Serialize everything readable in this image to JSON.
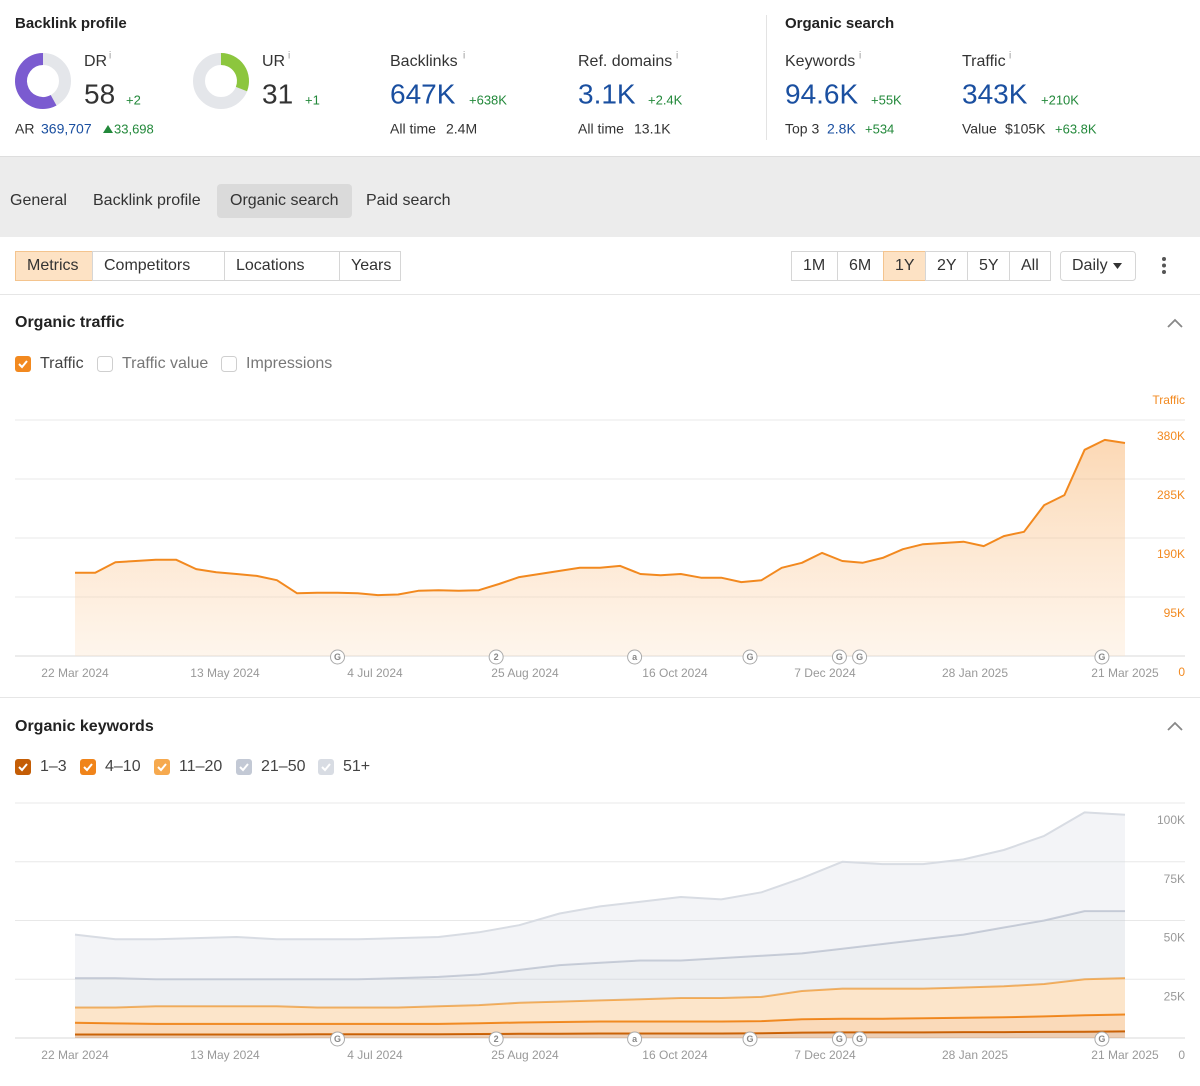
{
  "header": {
    "info_icon": "i",
    "backlink_profile": {
      "title": "Backlink profile",
      "dr": {
        "label": "DR",
        "value": 58,
        "change": "+2",
        "lim": [
          0,
          100
        ],
        "color": "#7b5bd0"
      },
      "ur": {
        "label": "UR",
        "value": 31,
        "change": "+1",
        "lim": [
          0,
          100
        ],
        "color": "#8cc63e"
      },
      "ar": {
        "label": "AR",
        "value": "369,707",
        "change": "33,698"
      },
      "backlinks": {
        "label": "Backlinks",
        "value": "647K",
        "change": "+638K",
        "sub_label": "All time",
        "sub_value": "2.4M"
      },
      "ref_domains": {
        "label": "Ref. domains",
        "value": "3.1K",
        "change": "+2.4K",
        "sub_label": "All time",
        "sub_value": "13.1K"
      }
    },
    "organic_search": {
      "title": "Organic search",
      "keywords": {
        "label": "Keywords",
        "value": "94.6K",
        "change": "+55K",
        "sub_label": "Top 3",
        "sub_value": "2.8K",
        "sub_change": "+534"
      },
      "traffic": {
        "label": "Traffic",
        "value": "343K",
        "change": "+210K",
        "sub_label": "Value",
        "sub_value": "$105K",
        "sub_change": "+63.8K"
      }
    }
  },
  "tabs": {
    "items": [
      "General",
      "Backlink profile",
      "Organic search",
      "Paid search"
    ],
    "active": 2
  },
  "toolbar": {
    "filters": [
      "Metrics",
      "Competitors",
      "Locations",
      "Years"
    ],
    "active_filter": 0,
    "ranges": [
      "1M",
      "6M",
      "1Y",
      "2Y",
      "5Y",
      "All"
    ],
    "active_range": 2,
    "interval": "Daily"
  },
  "events": [
    {
      "x": "2024-06-21",
      "label": "G"
    },
    {
      "x": "2024-08-15",
      "label": "2"
    },
    {
      "x": "2024-10-02",
      "label": "a"
    },
    {
      "x": "2024-11-11",
      "label": "G"
    },
    {
      "x": "2024-12-12",
      "label": "G"
    },
    {
      "x": "2024-12-19",
      "label": "G"
    },
    {
      "x": "2025-03-13",
      "label": "G"
    }
  ],
  "chart_data": [
    {
      "type": "area",
      "title": "Organic traffic",
      "y_label": "Traffic",
      "inactive_legend": [
        "Traffic value",
        "Impressions"
      ],
      "x": [
        "2024-03-22",
        "2024-03-29",
        "2024-04-05",
        "2024-04-12",
        "2024-04-19",
        "2024-04-26",
        "2024-05-03",
        "2024-05-10",
        "2024-05-17",
        "2024-05-24",
        "2024-05-31",
        "2024-06-07",
        "2024-06-14",
        "2024-06-21",
        "2024-06-28",
        "2024-07-05",
        "2024-07-12",
        "2024-07-19",
        "2024-07-26",
        "2024-08-02",
        "2024-08-09",
        "2024-08-16",
        "2024-08-23",
        "2024-08-30",
        "2024-09-06",
        "2024-09-13",
        "2024-09-20",
        "2024-09-27",
        "2024-10-04",
        "2024-10-11",
        "2024-10-18",
        "2024-10-25",
        "2024-11-01",
        "2024-11-08",
        "2024-11-15",
        "2024-11-22",
        "2024-11-29",
        "2024-12-06",
        "2024-12-13",
        "2024-12-20",
        "2024-12-27",
        "2025-01-03",
        "2025-01-10",
        "2025-01-17",
        "2025-01-24",
        "2025-01-31",
        "2025-02-07",
        "2025-02-14",
        "2025-02-21",
        "2025-02-28",
        "2025-03-07",
        "2025-03-14",
        "2025-03-21"
      ],
      "series": [
        {
          "name": "Traffic",
          "color": "#f2891f",
          "values": [
            134000,
            134000,
            151000,
            153000,
            155000,
            155000,
            140000,
            135000,
            132000,
            129000,
            122000,
            101000,
            102000,
            102000,
            101000,
            98000,
            99000,
            105000,
            106000,
            105000,
            106000,
            116000,
            127000,
            132000,
            137000,
            142000,
            142000,
            145000,
            132000,
            130000,
            132000,
            126000,
            126000,
            119000,
            122000,
            142000,
            150000,
            166000,
            153000,
            150000,
            158000,
            172000,
            180000,
            182000,
            184000,
            177000,
            193000,
            200000,
            243000,
            259000,
            332000,
            348000,
            343000
          ]
        }
      ],
      "xlim": [
        "2024-03-22",
        "2025-03-21"
      ],
      "xticks": [
        {
          "value": "2024-03-22",
          "label": "22 Mar 2024"
        },
        {
          "value": "2024-05-13",
          "label": "13 May 2024"
        },
        {
          "value": "2024-07-04",
          "label": "4 Jul 2024"
        },
        {
          "value": "2024-08-25",
          "label": "25 Aug 2024"
        },
        {
          "value": "2024-10-16",
          "label": "16 Oct 2024"
        },
        {
          "value": "2024-12-07",
          "label": "7 Dec 2024"
        },
        {
          "value": "2025-01-28",
          "label": "28 Jan 2025"
        },
        {
          "value": "2025-03-21",
          "label": "21 Mar 2025"
        }
      ],
      "ylim": [
        0,
        380000
      ],
      "yticks": [
        0,
        {
          "value": 95000,
          "label": "95K"
        },
        {
          "value": 190000,
          "label": "190K"
        },
        {
          "value": 285000,
          "label": "285K"
        },
        {
          "value": 380000,
          "label": "380K"
        }
      ],
      "grid": true
    },
    {
      "type": "stacked_area",
      "title": "Organic keywords",
      "x": [
        "2024-03-22",
        "2024-04-05",
        "2024-04-19",
        "2024-05-03",
        "2024-05-17",
        "2024-05-31",
        "2024-06-14",
        "2024-06-28",
        "2024-07-12",
        "2024-07-26",
        "2024-08-09",
        "2024-08-23",
        "2024-09-06",
        "2024-09-20",
        "2024-10-04",
        "2024-10-18",
        "2024-11-01",
        "2024-11-15",
        "2024-11-29",
        "2024-12-13",
        "2024-12-27",
        "2025-01-10",
        "2025-01-24",
        "2025-02-07",
        "2025-02-21",
        "2025-03-07",
        "2025-03-21"
      ],
      "series": [
        {
          "name": "1–3",
          "color": "#c45d05",
          "values": [
            1500,
            1500,
            1500,
            1500,
            1500,
            1500,
            1600,
            1600,
            1600,
            1600,
            1700,
            1800,
            1800,
            1900,
            1900,
            1900,
            1900,
            2000,
            2300,
            2400,
            2400,
            2400,
            2500,
            2500,
            2600,
            2700,
            2800
          ]
        },
        {
          "name": "4–10",
          "color": "#f0841a",
          "values": [
            5000,
            4700,
            4500,
            4500,
            4500,
            4500,
            4400,
            4400,
            4400,
            4400,
            4600,
            4800,
            5000,
            5100,
            5100,
            5100,
            5100,
            5200,
            5700,
            5800,
            5800,
            6000,
            6100,
            6300,
            6600,
            7000,
            7200
          ]
        },
        {
          "name": "11–20",
          "color": "#f6a94e",
          "values": [
            6500,
            6800,
            7500,
            7500,
            7500,
            7500,
            7000,
            7000,
            7000,
            7500,
            7700,
            8400,
            8700,
            9000,
            9500,
            10000,
            10000,
            10300,
            12000,
            12800,
            12800,
            12600,
            12900,
            13200,
            13800,
            15300,
            15500
          ]
        },
        {
          "name": "21–50",
          "color": "#c3c9d5",
          "values": [
            12500,
            12500,
            11500,
            11500,
            11500,
            11500,
            12000,
            12000,
            12500,
            12500,
            13000,
            14000,
            15500,
            16000,
            16500,
            16000,
            17000,
            17500,
            16000,
            17000,
            19000,
            21000,
            22500,
            25000,
            27000,
            29000,
            28500
          ]
        },
        {
          "name": "51+",
          "color": "#d8dce3",
          "values": [
            18500,
            16500,
            17000,
            17500,
            18000,
            17000,
            17000,
            17000,
            17000,
            17000,
            18000,
            19000,
            22000,
            24000,
            25000,
            27000,
            25000,
            27000,
            32000,
            37000,
            34000,
            32000,
            32000,
            33000,
            36000,
            42000,
            41000
          ]
        }
      ],
      "xlim": [
        "2024-03-22",
        "2025-03-21"
      ],
      "xticks": [
        {
          "value": "2024-03-22",
          "label": "22 Mar 2024"
        },
        {
          "value": "2024-05-13",
          "label": "13 May 2024"
        },
        {
          "value": "2024-07-04",
          "label": "4 Jul 2024"
        },
        {
          "value": "2024-08-25",
          "label": "25 Aug 2024"
        },
        {
          "value": "2024-10-16",
          "label": "16 Oct 2024"
        },
        {
          "value": "2024-12-07",
          "label": "7 Dec 2024"
        },
        {
          "value": "2025-01-28",
          "label": "28 Jan 2025"
        },
        {
          "value": "2025-03-21",
          "label": "21 Mar 2025"
        }
      ],
      "ylim": [
        0,
        100000
      ],
      "yticks": [
        0,
        {
          "value": 25000,
          "label": "25K"
        },
        {
          "value": 50000,
          "label": "50K"
        },
        {
          "value": 75000,
          "label": "75K"
        },
        {
          "value": 100000,
          "label": "100K"
        }
      ],
      "grid": true
    }
  ]
}
